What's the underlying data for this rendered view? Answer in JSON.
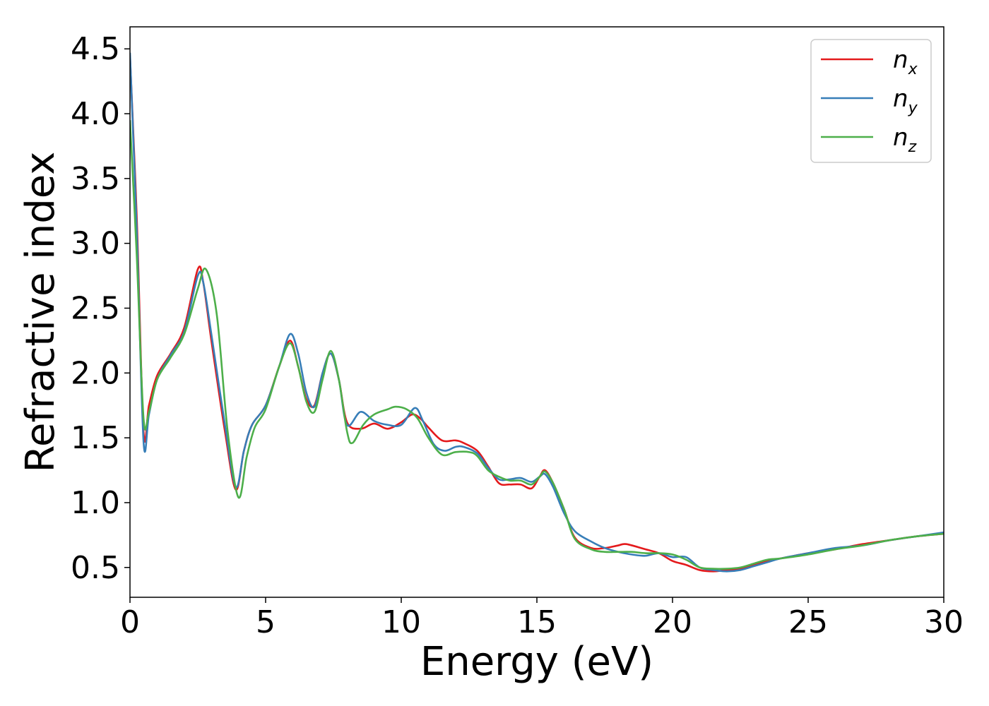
{
  "chart_data": {
    "type": "line",
    "xlabel": "Energy (eV)",
    "ylabel": "Refractive index",
    "xlim": [
      0,
      30
    ],
    "ylim": [
      0.27,
      4.67
    ],
    "x_ticks": [
      "0",
      "5",
      "10",
      "15",
      "20",
      "25",
      "30"
    ],
    "y_ticks": [
      "0.5",
      "1.0",
      "1.5",
      "2.0",
      "2.5",
      "3.0",
      "3.5",
      "4.0",
      "4.5"
    ],
    "grid": false,
    "legend_position": "top-right",
    "series": [
      {
        "name": "n",
        "subscript": "x",
        "color": "#e41a1c",
        "points": [
          [
            0,
            4.45
          ],
          [
            0.25,
            3.2
          ],
          [
            0.5,
            1.55
          ],
          [
            0.7,
            1.75
          ],
          [
            1.0,
            1.98
          ],
          [
            1.5,
            2.15
          ],
          [
            2.0,
            2.35
          ],
          [
            2.5,
            2.8
          ],
          [
            2.7,
            2.7
          ],
          [
            3.0,
            2.25
          ],
          [
            3.5,
            1.55
          ],
          [
            3.9,
            1.1
          ],
          [
            4.2,
            1.4
          ],
          [
            4.5,
            1.6
          ],
          [
            5.0,
            1.75
          ],
          [
            5.5,
            2.05
          ],
          [
            5.9,
            2.25
          ],
          [
            6.2,
            2.05
          ],
          [
            6.5,
            1.8
          ],
          [
            6.8,
            1.75
          ],
          [
            7.1,
            2.0
          ],
          [
            7.4,
            2.15
          ],
          [
            7.7,
            1.95
          ],
          [
            8.0,
            1.62
          ],
          [
            8.5,
            1.57
          ],
          [
            9.0,
            1.61
          ],
          [
            9.5,
            1.57
          ],
          [
            10.0,
            1.62
          ],
          [
            10.4,
            1.68
          ],
          [
            10.7,
            1.65
          ],
          [
            11.0,
            1.58
          ],
          [
            11.5,
            1.48
          ],
          [
            12.0,
            1.48
          ],
          [
            12.3,
            1.46
          ],
          [
            12.8,
            1.4
          ],
          [
            13.2,
            1.28
          ],
          [
            13.6,
            1.15
          ],
          [
            14.0,
            1.14
          ],
          [
            14.4,
            1.14
          ],
          [
            14.8,
            1.11
          ],
          [
            15.1,
            1.2
          ],
          [
            15.3,
            1.25
          ],
          [
            15.6,
            1.15
          ],
          [
            16.0,
            0.95
          ],
          [
            16.4,
            0.73
          ],
          [
            17.0,
            0.65
          ],
          [
            17.5,
            0.65
          ],
          [
            18.0,
            0.67
          ],
          [
            18.3,
            0.68
          ],
          [
            19.0,
            0.64
          ],
          [
            19.5,
            0.61
          ],
          [
            20.0,
            0.55
          ],
          [
            20.5,
            0.52
          ],
          [
            21.0,
            0.48
          ],
          [
            21.5,
            0.47
          ],
          [
            22.0,
            0.48
          ],
          [
            22.5,
            0.49
          ],
          [
            23.0,
            0.52
          ],
          [
            23.5,
            0.55
          ],
          [
            24.0,
            0.57
          ],
          [
            25.0,
            0.61
          ],
          [
            26.0,
            0.64
          ],
          [
            27.0,
            0.68
          ],
          [
            28.0,
            0.71
          ],
          [
            29.0,
            0.74
          ],
          [
            30.0,
            0.76
          ]
        ]
      },
      {
        "name": "n",
        "subscript": "y",
        "color": "#377eb8",
        "points": [
          [
            0,
            4.47
          ],
          [
            0.25,
            3.1
          ],
          [
            0.5,
            1.47
          ],
          [
            0.7,
            1.68
          ],
          [
            1.0,
            1.95
          ],
          [
            1.5,
            2.14
          ],
          [
            2.0,
            2.32
          ],
          [
            2.5,
            2.75
          ],
          [
            2.7,
            2.7
          ],
          [
            3.0,
            2.3
          ],
          [
            3.5,
            1.6
          ],
          [
            3.9,
            1.12
          ],
          [
            4.2,
            1.4
          ],
          [
            4.5,
            1.6
          ],
          [
            5.0,
            1.75
          ],
          [
            5.5,
            2.05
          ],
          [
            5.9,
            2.3
          ],
          [
            6.2,
            2.15
          ],
          [
            6.5,
            1.85
          ],
          [
            6.8,
            1.74
          ],
          [
            7.1,
            2.0
          ],
          [
            7.4,
            2.15
          ],
          [
            7.7,
            1.95
          ],
          [
            8.0,
            1.6
          ],
          [
            8.5,
            1.7
          ],
          [
            9.0,
            1.63
          ],
          [
            9.5,
            1.6
          ],
          [
            10.0,
            1.6
          ],
          [
            10.5,
            1.73
          ],
          [
            10.8,
            1.63
          ],
          [
            11.2,
            1.45
          ],
          [
            11.6,
            1.4
          ],
          [
            12.0,
            1.43
          ],
          [
            12.3,
            1.43
          ],
          [
            12.8,
            1.38
          ],
          [
            13.2,
            1.27
          ],
          [
            13.6,
            1.18
          ],
          [
            14.0,
            1.18
          ],
          [
            14.4,
            1.19
          ],
          [
            14.8,
            1.16
          ],
          [
            15.1,
            1.2
          ],
          [
            15.3,
            1.22
          ],
          [
            15.6,
            1.12
          ],
          [
            16.0,
            0.92
          ],
          [
            16.4,
            0.78
          ],
          [
            17.0,
            0.7
          ],
          [
            17.5,
            0.65
          ],
          [
            18.0,
            0.62
          ],
          [
            18.5,
            0.6
          ],
          [
            19.0,
            0.59
          ],
          [
            19.5,
            0.61
          ],
          [
            20.0,
            0.58
          ],
          [
            20.5,
            0.58
          ],
          [
            21.0,
            0.5
          ],
          [
            21.5,
            0.48
          ],
          [
            22.0,
            0.47
          ],
          [
            22.5,
            0.48
          ],
          [
            23.0,
            0.51
          ],
          [
            23.5,
            0.54
          ],
          [
            24.0,
            0.57
          ],
          [
            25.0,
            0.61
          ],
          [
            26.0,
            0.65
          ],
          [
            27.0,
            0.67
          ],
          [
            28.0,
            0.71
          ],
          [
            29.0,
            0.74
          ],
          [
            30.0,
            0.77
          ]
        ]
      },
      {
        "name": "n",
        "subscript": "z",
        "color": "#4daf4a",
        "points": [
          [
            0,
            3.95
          ],
          [
            0.25,
            2.9
          ],
          [
            0.5,
            1.65
          ],
          [
            0.7,
            1.7
          ],
          [
            1.0,
            1.95
          ],
          [
            1.5,
            2.12
          ],
          [
            2.0,
            2.3
          ],
          [
            2.5,
            2.65
          ],
          [
            2.8,
            2.8
          ],
          [
            3.2,
            2.45
          ],
          [
            3.6,
            1.55
          ],
          [
            4.0,
            1.04
          ],
          [
            4.3,
            1.35
          ],
          [
            4.6,
            1.58
          ],
          [
            5.0,
            1.72
          ],
          [
            5.5,
            2.05
          ],
          [
            5.9,
            2.23
          ],
          [
            6.2,
            2.05
          ],
          [
            6.5,
            1.78
          ],
          [
            6.8,
            1.7
          ],
          [
            7.1,
            1.95
          ],
          [
            7.4,
            2.17
          ],
          [
            7.7,
            1.95
          ],
          [
            8.0,
            1.55
          ],
          [
            8.2,
            1.46
          ],
          [
            8.6,
            1.6
          ],
          [
            9.0,
            1.68
          ],
          [
            9.5,
            1.72
          ],
          [
            9.8,
            1.74
          ],
          [
            10.2,
            1.72
          ],
          [
            10.6,
            1.65
          ],
          [
            11.0,
            1.5
          ],
          [
            11.5,
            1.37
          ],
          [
            12.0,
            1.39
          ],
          [
            12.5,
            1.39
          ],
          [
            12.8,
            1.36
          ],
          [
            13.2,
            1.25
          ],
          [
            13.6,
            1.2
          ],
          [
            14.0,
            1.17
          ],
          [
            14.4,
            1.17
          ],
          [
            14.8,
            1.14
          ],
          [
            15.1,
            1.2
          ],
          [
            15.3,
            1.24
          ],
          [
            15.6,
            1.15
          ],
          [
            16.0,
            0.95
          ],
          [
            16.4,
            0.72
          ],
          [
            17.0,
            0.64
          ],
          [
            17.5,
            0.62
          ],
          [
            18.0,
            0.62
          ],
          [
            18.5,
            0.62
          ],
          [
            19.0,
            0.61
          ],
          [
            19.5,
            0.61
          ],
          [
            20.0,
            0.6
          ],
          [
            20.5,
            0.56
          ],
          [
            21.0,
            0.5
          ],
          [
            21.5,
            0.49
          ],
          [
            22.0,
            0.49
          ],
          [
            22.5,
            0.5
          ],
          [
            23.0,
            0.53
          ],
          [
            23.5,
            0.56
          ],
          [
            24.0,
            0.57
          ],
          [
            25.0,
            0.6
          ],
          [
            26.0,
            0.64
          ],
          [
            27.0,
            0.67
          ],
          [
            28.0,
            0.71
          ],
          [
            29.0,
            0.74
          ],
          [
            30.0,
            0.76
          ]
        ]
      }
    ]
  }
}
